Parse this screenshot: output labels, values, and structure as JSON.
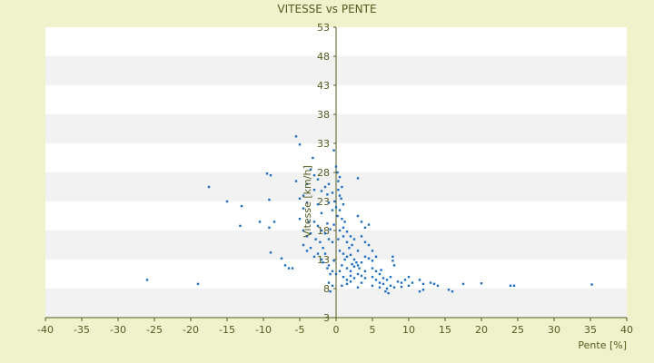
{
  "chart_data": {
    "type": "scatter",
    "title": "VITESSE vs PENTE",
    "xlabel": "Pente [%]",
    "ylabel": "Vitesse [km/h]",
    "xlim": [
      -40,
      40
    ],
    "ylim": [
      3,
      53
    ],
    "x_ticks": [
      -40,
      -35,
      -30,
      -25,
      -20,
      -15,
      -10,
      -5,
      0,
      5,
      10,
      15,
      20,
      25,
      30,
      35,
      40
    ],
    "y_ticks": [
      3,
      8,
      13,
      18,
      23,
      28,
      33,
      38,
      43,
      48,
      53
    ],
    "grid": "horizontal alternating bands",
    "marker_color": "#1f6fc0",
    "plot_band_colors": [
      "#ffffff",
      "#f2f2f2"
    ],
    "page_background": "#eef3cc",
    "axis_color": "#555a1f",
    "points": [
      [
        -26,
        9.5
      ],
      [
        -19,
        8.8
      ],
      [
        -17.5,
        25.5
      ],
      [
        -15,
        23
      ],
      [
        -13,
        22.2
      ],
      [
        -13.2,
        18.8
      ],
      [
        -10.5,
        19.5
      ],
      [
        -9.5,
        27.8
      ],
      [
        -9,
        27.5
      ],
      [
        -9.2,
        23.3
      ],
      [
        -9.2,
        18.5
      ],
      [
        -8.5,
        19.5
      ],
      [
        -9,
        14.2
      ],
      [
        -7.5,
        13.2
      ],
      [
        -7,
        12
      ],
      [
        -6.5,
        11.5
      ],
      [
        -6,
        11.5
      ],
      [
        -5.5,
        34.2
      ],
      [
        -5,
        32.8
      ],
      [
        -5.5,
        26.5
      ],
      [
        -5,
        23.5
      ],
      [
        -4.5,
        24
      ],
      [
        -4.5,
        21.8
      ],
      [
        -4,
        22.8
      ],
      [
        -4,
        26
      ],
      [
        -3.5,
        28.5
      ],
      [
        -3.2,
        30.5
      ],
      [
        -3,
        27.5
      ],
      [
        -3,
        25
      ],
      [
        -2.5,
        26.8
      ],
      [
        -2.5,
        22.5
      ],
      [
        -2,
        24.8
      ],
      [
        -2,
        21
      ],
      [
        -1.5,
        25.5
      ],
      [
        -1.2,
        24.2
      ],
      [
        -1,
        26
      ],
      [
        -1,
        22.8
      ],
      [
        -0.5,
        24.5
      ],
      [
        -0.5,
        21.5
      ],
      [
        -0.2,
        23
      ],
      [
        0,
        22
      ],
      [
        -5,
        20
      ],
      [
        -4.5,
        18
      ],
      [
        -4,
        17
      ],
      [
        -3.8,
        19.5
      ],
      [
        -3.5,
        17.5
      ],
      [
        -3,
        19.5
      ],
      [
        -2.8,
        16.5
      ],
      [
        -2.5,
        18.8
      ],
      [
        -2.2,
        16
      ],
      [
        -2,
        18
      ],
      [
        -1.8,
        15
      ],
      [
        -1.5,
        17.5
      ],
      [
        -1.2,
        19.2
      ],
      [
        -1,
        16.5
      ],
      [
        -0.8,
        18.2
      ],
      [
        -0.5,
        16
      ],
      [
        -0.3,
        19
      ],
      [
        -4.5,
        15.5
      ],
      [
        -4,
        14.5
      ],
      [
        -3.5,
        15
      ],
      [
        -3,
        13.5
      ],
      [
        -2.5,
        14
      ],
      [
        -2,
        13
      ],
      [
        -1.8,
        12.5
      ],
      [
        -1.5,
        14
      ],
      [
        -1.2,
        11.5
      ],
      [
        -1,
        12
      ],
      [
        -0.8,
        10.5
      ],
      [
        -0.5,
        11
      ],
      [
        -0.3,
        12.8
      ],
      [
        0,
        10.5
      ],
      [
        -0.5,
        8.5
      ],
      [
        -1,
        9
      ],
      [
        -0.8,
        7.5
      ],
      [
        -0.3,
        31.8
      ],
      [
        0,
        29
      ],
      [
        0.2,
        28
      ],
      [
        0.3,
        26.5
      ],
      [
        0.3,
        25
      ],
      [
        0.5,
        27.2
      ],
      [
        0.5,
        24
      ],
      [
        0.7,
        23.5
      ],
      [
        0.8,
        25.5
      ],
      [
        1,
        22.5
      ],
      [
        0.5,
        21.5
      ],
      [
        0.2,
        20.5
      ],
      [
        0.8,
        20
      ],
      [
        1,
        18.5
      ],
      [
        1.2,
        19.5
      ],
      [
        0.5,
        18
      ],
      [
        0.3,
        16.5
      ],
      [
        1,
        17
      ],
      [
        1.5,
        17.8
      ],
      [
        1.5,
        16
      ],
      [
        2,
        17
      ],
      [
        1.8,
        15
      ],
      [
        2.2,
        15.5
      ],
      [
        2.5,
        16.5
      ],
      [
        0.5,
        14.5
      ],
      [
        1,
        14
      ],
      [
        1.2,
        13
      ],
      [
        1.5,
        13.5
      ],
      [
        2,
        13.8
      ],
      [
        2.5,
        13
      ],
      [
        3,
        14.5
      ],
      [
        2.8,
        12.5
      ],
      [
        0.8,
        12
      ],
      [
        1.5,
        11.5
      ],
      [
        2,
        11
      ],
      [
        2.5,
        11.8
      ],
      [
        0.5,
        11
      ],
      [
        1,
        10
      ],
      [
        1.5,
        9.5
      ],
      [
        2,
        10.2
      ],
      [
        2.5,
        9.8
      ],
      [
        3,
        10.5
      ],
      [
        3.2,
        11.5
      ],
      [
        3.5,
        10.2
      ],
      [
        3.5,
        9
      ],
      [
        4,
        9.8
      ],
      [
        0.8,
        8.5
      ],
      [
        1.5,
        8.8
      ],
      [
        2,
        9.2
      ],
      [
        3,
        8.2
      ],
      [
        2.2,
        12.2
      ],
      [
        3,
        12
      ],
      [
        3.5,
        12.5
      ],
      [
        4,
        11
      ],
      [
        3,
        27
      ],
      [
        3,
        20.5
      ],
      [
        3.5,
        19.5
      ],
      [
        4,
        18.5
      ],
      [
        4.5,
        19
      ],
      [
        3.5,
        17
      ],
      [
        4,
        16
      ],
      [
        4.5,
        15.5
      ],
      [
        5,
        14.5
      ],
      [
        4,
        13.5
      ],
      [
        4.5,
        13.2
      ],
      [
        5,
        12.8
      ],
      [
        5.5,
        13.5
      ],
      [
        5,
        11.5
      ],
      [
        5.5,
        11
      ],
      [
        6,
        10.5
      ],
      [
        6.2,
        11.2
      ],
      [
        5,
        10
      ],
      [
        5.5,
        9.5
      ],
      [
        6,
        9
      ],
      [
        6.5,
        9.8
      ],
      [
        7,
        9.5
      ],
      [
        7.5,
        10
      ],
      [
        5,
        8.5
      ],
      [
        6,
        8.2
      ],
      [
        6.5,
        8.8
      ],
      [
        7,
        8
      ],
      [
        7.5,
        8.5
      ],
      [
        8,
        8.2
      ],
      [
        6.8,
        7.5
      ],
      [
        7.2,
        7.2
      ],
      [
        7.8,
        13.5
      ],
      [
        7.8,
        12.8
      ],
      [
        8,
        12
      ],
      [
        8.5,
        9.2
      ],
      [
        9,
        9
      ],
      [
        9.5,
        9.5
      ],
      [
        10,
        10
      ],
      [
        10.5,
        9
      ],
      [
        9,
        8.3
      ],
      [
        10,
        8.5
      ],
      [
        11.5,
        9.5
      ],
      [
        12,
        8.8
      ],
      [
        12,
        7.8
      ],
      [
        11.5,
        7.5
      ],
      [
        13,
        9
      ],
      [
        13.5,
        8.8
      ],
      [
        14,
        8.5
      ],
      [
        15.5,
        7.8
      ],
      [
        16,
        7.5
      ],
      [
        17.5,
        8.8
      ],
      [
        20,
        8.9
      ],
      [
        24,
        8.5
      ],
      [
        24.5,
        8.5
      ],
      [
        35.2,
        8.7
      ]
    ]
  }
}
